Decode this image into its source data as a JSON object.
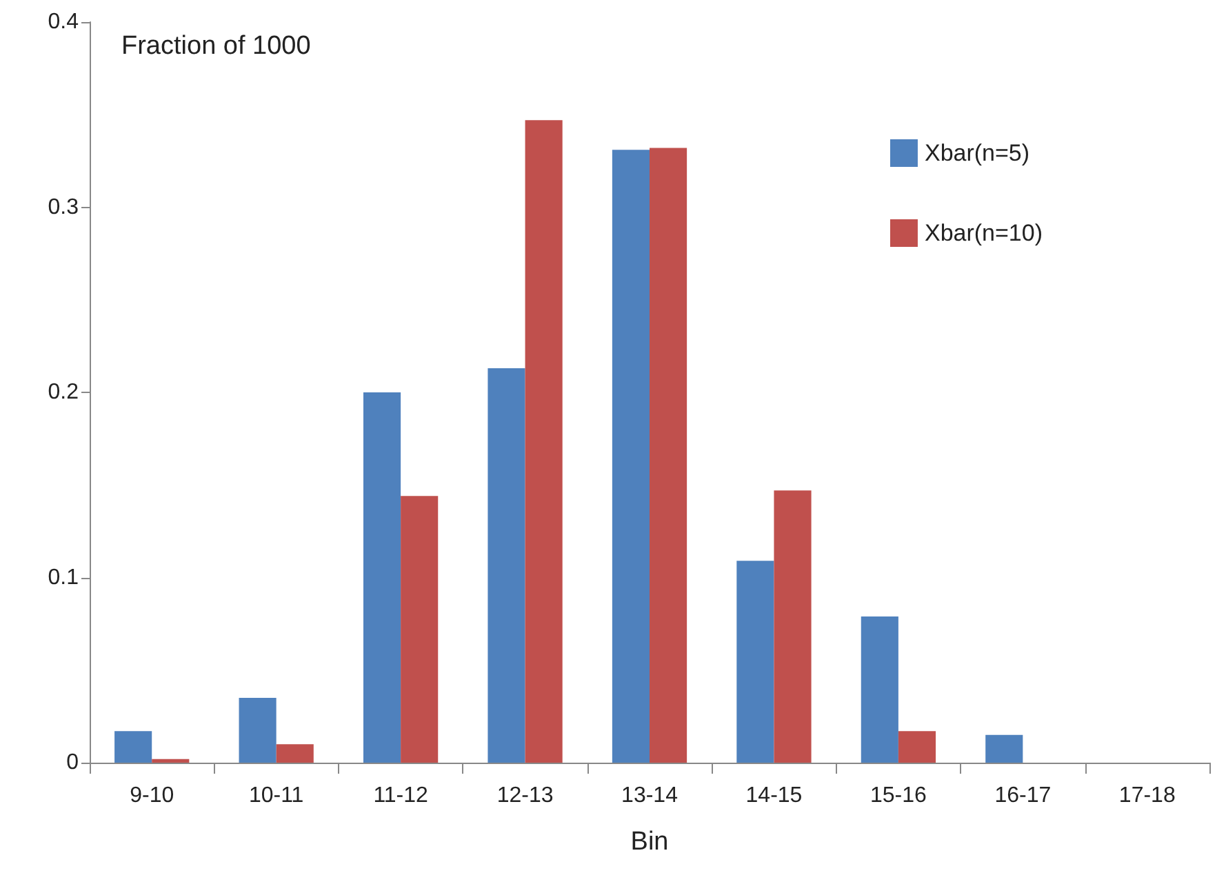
{
  "chart_data": {
    "type": "bar",
    "ylabel": "Fraction of 1000",
    "xlabel": "Bin",
    "categories": [
      "9-10",
      "10-11",
      "11-12",
      "12-13",
      "13-14",
      "14-15",
      "15-16",
      "16-17",
      "17-18"
    ],
    "series": [
      {
        "name": "Xbar(n=5)",
        "color": "#4f81bd",
        "values": [
          0.017,
          0.035,
          0.2,
          0.213,
          0.331,
          0.109,
          0.079,
          0.015,
          0
        ]
      },
      {
        "name": "Xbar(n=10)",
        "color": "#c0504d",
        "values": [
          0.002,
          0.01,
          0.144,
          0.347,
          0.332,
          0.147,
          0.017,
          0,
          0
        ]
      }
    ],
    "ylim": [
      0,
      0.4
    ],
    "yticks": [
      0,
      0.1,
      0.2,
      0.3,
      0.4
    ],
    "grid": false,
    "legend": "top right"
  }
}
